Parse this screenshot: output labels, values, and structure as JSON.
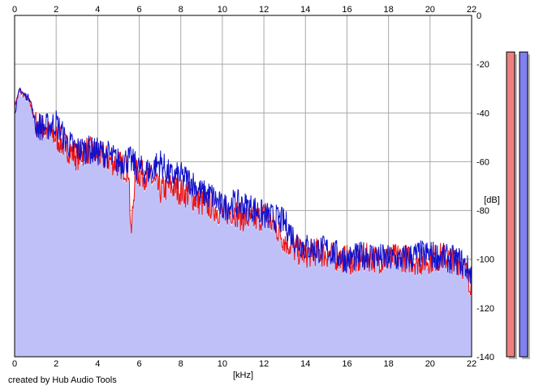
{
  "credit": "created by Hub Audio Tools",
  "chart_data": {
    "type": "area",
    "xlabel": "[kHz]",
    "ylabel": "[dB]",
    "xlim": [
      0,
      22
    ],
    "ylim": [
      -140,
      0
    ],
    "x_ticks": [
      "0",
      "2",
      "4",
      "6",
      "8",
      "10",
      "12",
      "14",
      "16",
      "18",
      "20",
      "22"
    ],
    "y_ticks": [
      "0",
      "-20",
      "-40",
      "-60",
      "-80",
      "-100",
      "-120",
      "-140"
    ],
    "grid": true,
    "colors": {
      "fill": "#c0c0f8",
      "left": "#ee1111",
      "right": "#1111cc",
      "grid": "#a8a8a8"
    },
    "series": [
      {
        "color": "#ee1111",
        "x": [
          0,
          0.25,
          0.5,
          0.75,
          1,
          1.5,
          2,
          2.5,
          3,
          3.5,
          4,
          4.5,
          5,
          5.5,
          5.6,
          5.8,
          6,
          6.5,
          7,
          7.5,
          8,
          8.5,
          9,
          9.5,
          10,
          10.5,
          11,
          11.5,
          12,
          12.5,
          13,
          13.5,
          14,
          14.5,
          15,
          15.5,
          16,
          16.5,
          17,
          17.5,
          18,
          18.5,
          19,
          19.5,
          20,
          20.5,
          21,
          21.5,
          22
        ],
        "values": [
          -37,
          -31,
          -33,
          -36,
          -44,
          -47,
          -50,
          -54,
          -58,
          -55,
          -57,
          -59,
          -61,
          -63,
          -92,
          -64,
          -65,
          -66,
          -72,
          -70,
          -72,
          -74,
          -77,
          -78,
          -81,
          -80,
          -83,
          -84,
          -82,
          -86,
          -92,
          -96,
          -98,
          -97,
          -98,
          -99,
          -100,
          -101,
          -99,
          -100,
          -100,
          -99,
          -100,
          -101,
          -100,
          -99,
          -100,
          -101,
          -110
        ]
      },
      {
        "color": "#1111cc",
        "x": [
          0,
          0.25,
          0.5,
          0.75,
          1,
          1.5,
          2,
          2.5,
          3,
          3.5,
          4,
          4.5,
          5,
          5.5,
          6,
          6.5,
          7,
          7.5,
          8,
          8.5,
          9,
          9.5,
          10,
          10.5,
          11,
          11.5,
          12,
          12.5,
          13,
          13.5,
          14,
          14.5,
          15,
          15.5,
          16,
          16.5,
          17,
          17.5,
          18,
          18.5,
          19,
          19.5,
          20,
          20.5,
          21,
          21.5,
          22
        ],
        "values": [
          -40,
          -30,
          -33,
          -34,
          -45,
          -46,
          -44,
          -52,
          -55,
          -55,
          -56,
          -57,
          -60,
          -59,
          -63,
          -64,
          -60,
          -66,
          -66,
          -68,
          -73,
          -74,
          -79,
          -77,
          -78,
          -79,
          -82,
          -83,
          -85,
          -92,
          -95,
          -96,
          -96,
          -98,
          -100,
          -99,
          -98,
          -99,
          -100,
          -100,
          -99,
          -98,
          -98,
          -99,
          -100,
          -101,
          -106
        ]
      }
    ],
    "meters": [
      {
        "channel": "left",
        "level_db": -15,
        "color": "#ec8080"
      },
      {
        "channel": "right",
        "level_db": -15,
        "color": "#8080ee"
      }
    ]
  }
}
